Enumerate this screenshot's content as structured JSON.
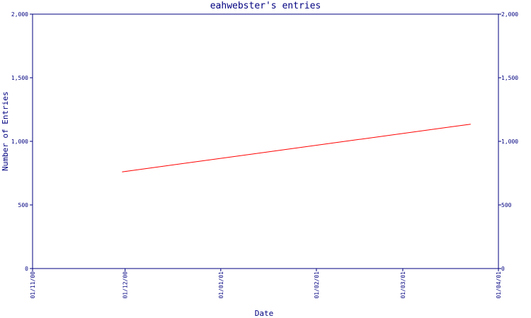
{
  "chart_data": {
    "type": "line",
    "title": "eahwebster's entries",
    "xlabel": "Date",
    "ylabel": "Number of Entries",
    "x_ticks": [
      "01/11/00",
      "01/12/00",
      "01/01/01",
      "01/02/01",
      "01/03/01",
      "01/04/01"
    ],
    "y_ticks": [
      "0",
      "500",
      "1,000",
      "1,500",
      "2,000"
    ],
    "ylim": [
      0,
      2000
    ],
    "xlim": [
      "01/11/00",
      "01/04/01"
    ],
    "series": [
      {
        "x": [
          "2000-11-30",
          "2001-03-23"
        ],
        "values": [
          760,
          1135
        ]
      }
    ],
    "grid": false,
    "dual_y_axis": true,
    "colors": {
      "axis": "#000080",
      "line": "#ff0000",
      "text": "#000080"
    }
  }
}
